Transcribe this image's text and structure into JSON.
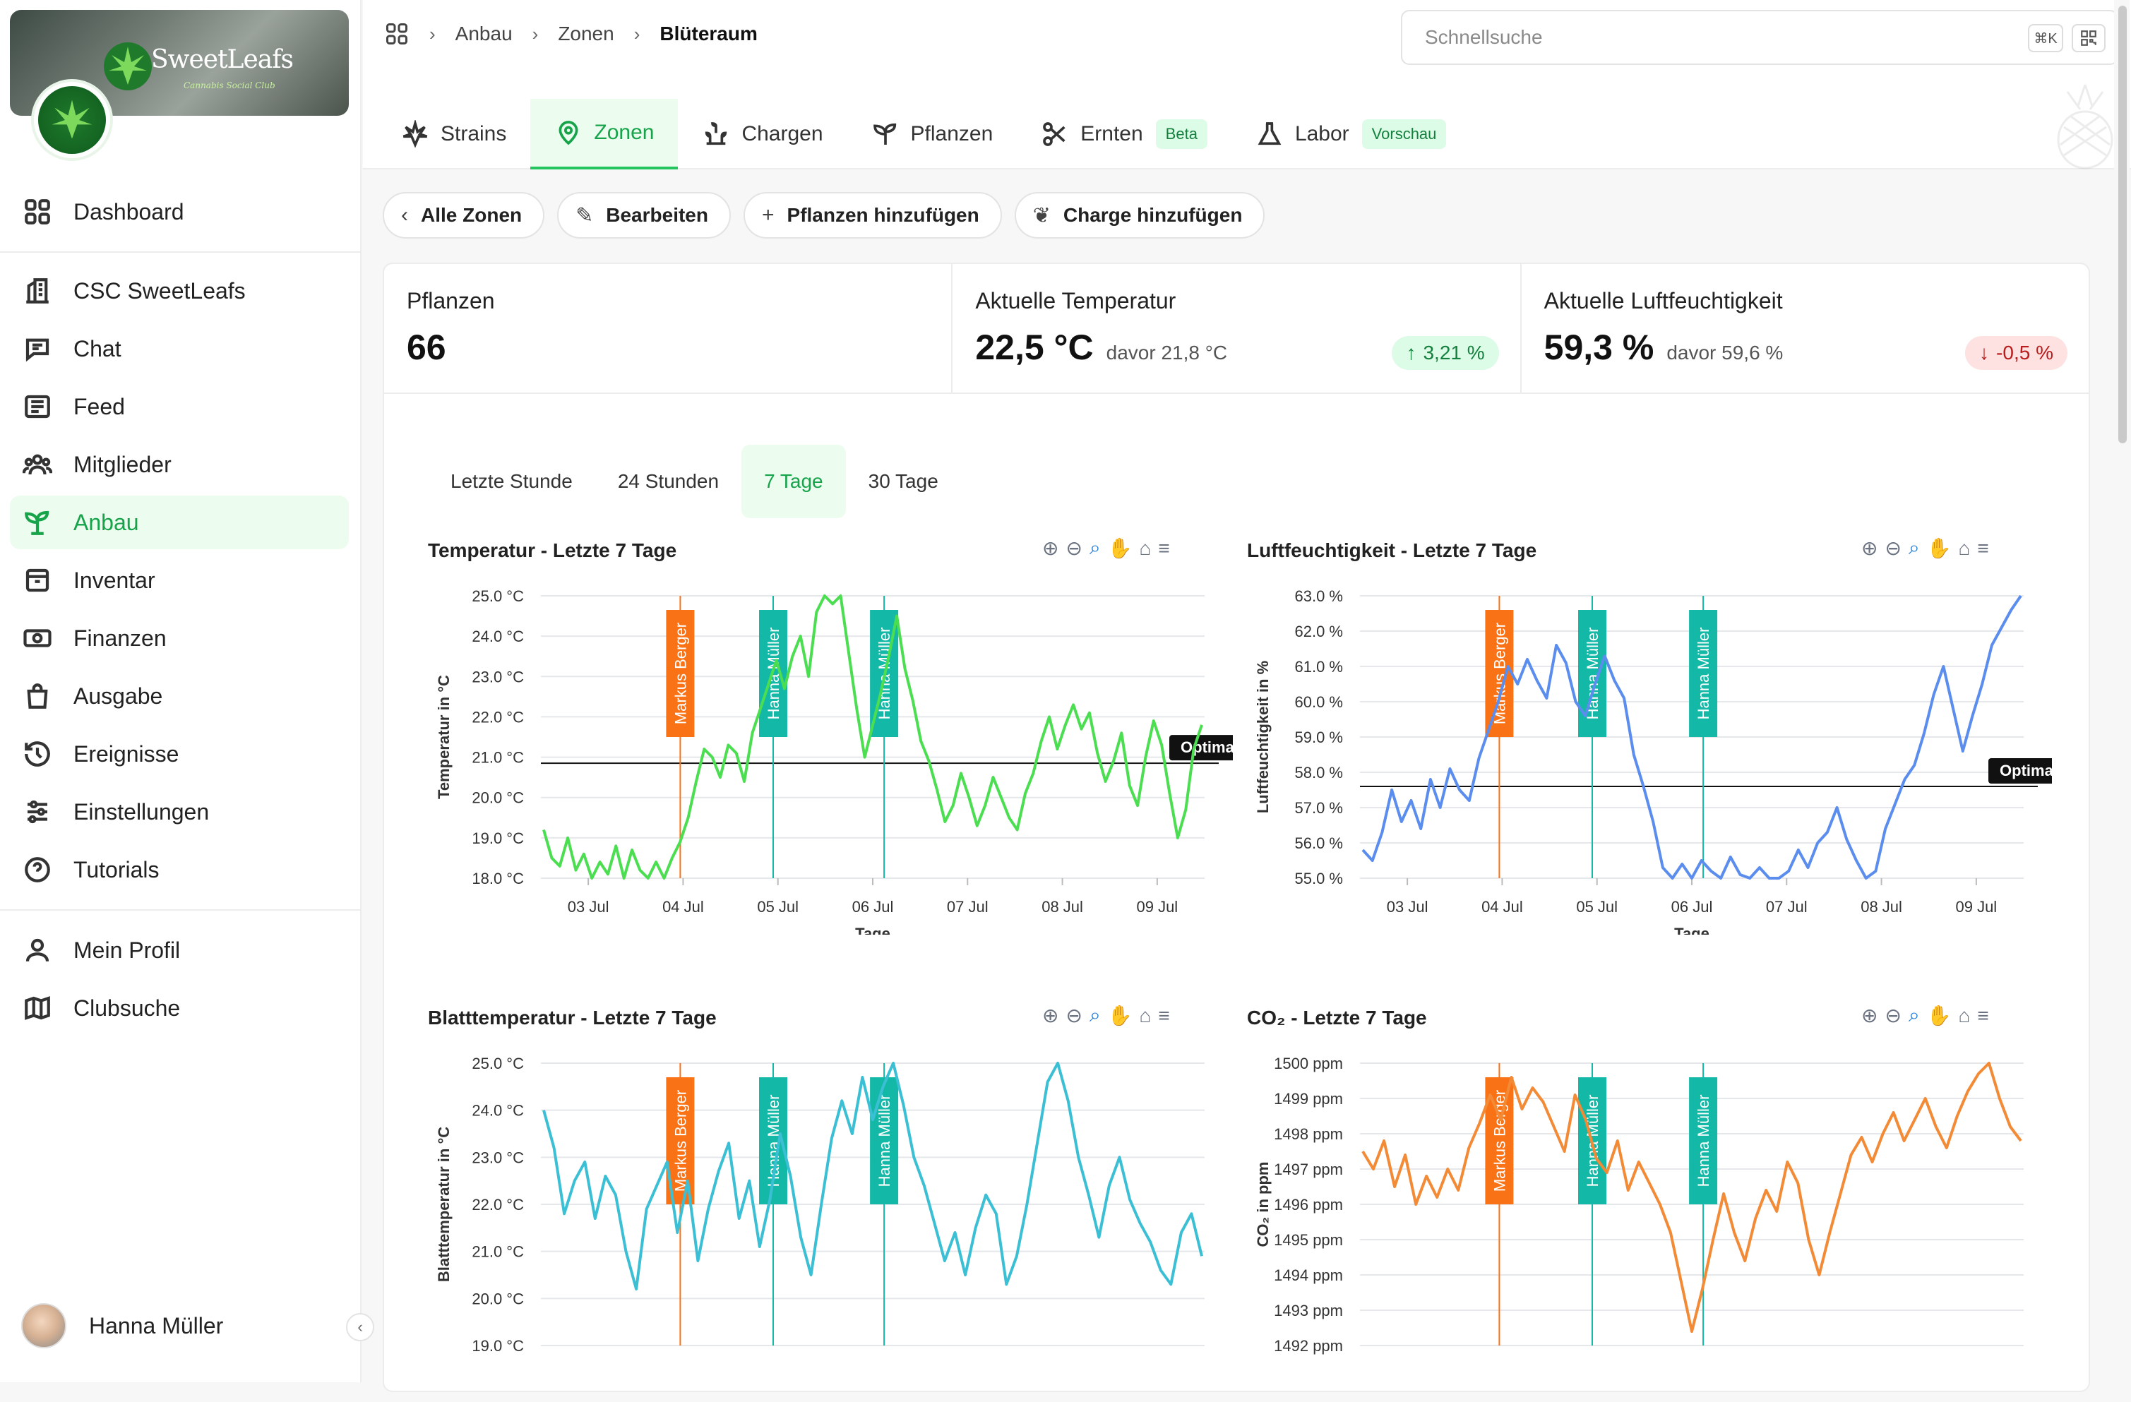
{
  "brand": {
    "name": "SweetLeafs",
    "tagline": "Cannabis Social Club"
  },
  "sidebar": {
    "items": [
      {
        "label": "Dashboard",
        "icon": "grid-icon"
      },
      {
        "label": "CSC SweetLeafs",
        "icon": "building-icon"
      },
      {
        "label": "Chat",
        "icon": "chat-icon"
      },
      {
        "label": "Feed",
        "icon": "newspaper-icon"
      },
      {
        "label": "Mitglieder",
        "icon": "users-icon"
      },
      {
        "label": "Anbau",
        "icon": "sprout-icon"
      },
      {
        "label": "Inventar",
        "icon": "box-icon"
      },
      {
        "label": "Finanzen",
        "icon": "banknote-icon"
      },
      {
        "label": "Ausgabe",
        "icon": "shopping-bag-icon"
      },
      {
        "label": "Ereignisse",
        "icon": "history-icon"
      },
      {
        "label": "Einstellungen",
        "icon": "sliders-icon"
      },
      {
        "label": "Tutorials",
        "icon": "help-icon"
      },
      {
        "label": "Mein Profil",
        "icon": "user-icon"
      },
      {
        "label": "Clubsuche",
        "icon": "map-icon"
      }
    ],
    "active": "Anbau",
    "user": "Hanna Müller"
  },
  "breadcrumb": [
    "Anbau",
    "Zonen",
    "Blüteraum"
  ],
  "search": {
    "placeholder": "Schnellsuche",
    "shortcut": "⌘K"
  },
  "tabs": [
    {
      "label": "Strains",
      "badge": ""
    },
    {
      "label": "Zonen",
      "badge": ""
    },
    {
      "label": "Chargen",
      "badge": ""
    },
    {
      "label": "Pflanzen",
      "badge": ""
    },
    {
      "label": "Ernten",
      "badge": "Beta"
    },
    {
      "label": "Labor",
      "badge": "Vorschau"
    }
  ],
  "actions": [
    "Alle Zonen",
    "Bearbeiten",
    "Pflanzen hinzufügen",
    "Charge hinzufügen"
  ],
  "stats": [
    {
      "label": "Pflanzen",
      "value": "66",
      "prev": "",
      "delta": "",
      "direction": ""
    },
    {
      "label": "Aktuelle Temperatur",
      "value": "22,5 °C",
      "prev": "davor 21,8 °C",
      "delta": "3,21 %",
      "direction": "up"
    },
    {
      "label": "Aktuelle Luftfeuchtigkeit",
      "value": "59,3 %",
      "prev": "davor 59,6 %",
      "delta": "-0,5 %",
      "direction": "down"
    }
  ],
  "ranges": [
    "Letzte Stunde",
    "24 Stunden",
    "7 Tage",
    "30 Tage"
  ],
  "active_range": "7 Tage",
  "colors": {
    "accent": "#16a34a",
    "temp": "#4ade50",
    "humidity": "#5b8def",
    "leaf": "#3bbfd4",
    "co2": "#f28a36",
    "markus": "#f97316",
    "hanna": "#14b8a6"
  },
  "chart_data": [
    {
      "type": "line",
      "title": "Temperatur - Letzte 7 Tage",
      "xlabel": "Tage",
      "ylabel": "Temperatur in °C",
      "x_ticks": [
        "03 Jul",
        "04 Jul",
        "05 Jul",
        "06 Jul",
        "07 Jul",
        "08 Jul",
        "09 Jul"
      ],
      "y_ticks": [
        "18.0 °C",
        "19.0 °C",
        "20.0 °C",
        "21.0 °C",
        "22.0 °C",
        "23.0 °C",
        "24.0 °C",
        "25.0 °C"
      ],
      "ylim": [
        18,
        25
      ],
      "optimal": 20.85,
      "optimal_label": "Optimal",
      "annotations": [
        {
          "label": "Markus Berger",
          "x": 4.47
        },
        {
          "label": "Hanna Müller",
          "x": 5.45
        },
        {
          "label": "Hanna Müller",
          "x": 6.62
        }
      ],
      "series": [
        {
          "values": [
            19.2,
            18.5,
            18.3,
            19.0,
            18.2,
            18.6,
            18.0,
            18.4,
            18.1,
            18.8,
            18.0,
            18.7,
            18.2,
            18.0,
            18.4,
            18.0,
            18.5,
            18.9,
            19.5,
            20.4,
            21.2,
            21.0,
            20.5,
            21.3,
            21.1,
            20.4,
            21.6,
            22.2,
            22.8,
            23.4,
            22.7,
            23.5,
            24.0,
            23.0,
            24.6,
            25.0,
            24.8,
            25.0,
            23.6,
            22.2,
            21.0,
            21.8,
            22.6,
            23.5,
            24.5,
            23.2,
            22.4,
            21.4,
            20.9,
            20.2,
            19.4,
            19.8,
            20.6,
            20.0,
            19.3,
            19.8,
            20.5,
            20.0,
            19.5,
            19.2,
            20.1,
            20.6,
            21.4,
            22.0,
            21.2,
            21.8,
            22.3,
            21.7,
            22.1,
            21.1,
            20.4,
            20.9,
            21.6,
            20.3,
            19.8,
            21.0,
            21.9,
            21.3,
            20.1,
            19.0,
            19.7,
            21.2,
            21.8
          ]
        }
      ]
    },
    {
      "type": "line",
      "title": "Luftfeuchtigkeit - Letzte 7 Tage",
      "xlabel": "Tage",
      "ylabel": "Luftfeuchtigkeit in %",
      "x_ticks": [
        "03 Jul",
        "04 Jul",
        "05 Jul",
        "06 Jul",
        "07 Jul",
        "08 Jul",
        "09 Jul"
      ],
      "y_ticks": [
        "55.0 %",
        "56.0 %",
        "57.0 %",
        "58.0 %",
        "59.0 %",
        "60.0 %",
        "61.0 %",
        "62.0 %",
        "63.0 %"
      ],
      "ylim": [
        55,
        63
      ],
      "optimal": 57.6,
      "optimal_label": "Optimal",
      "annotations": [
        {
          "label": "Markus Berger",
          "x": 4.47
        },
        {
          "label": "Hanna Müller",
          "x": 5.45
        },
        {
          "label": "Hanna Müller",
          "x": 6.62
        }
      ],
      "series": [
        {
          "values": [
            55.8,
            55.5,
            56.3,
            57.5,
            56.6,
            57.2,
            56.4,
            57.8,
            57.0,
            58.1,
            57.5,
            57.2,
            58.4,
            59.2,
            60.0,
            61.0,
            60.5,
            61.2,
            60.6,
            60.1,
            61.6,
            61.1,
            60.0,
            59.6,
            60.5,
            61.3,
            60.6,
            60.1,
            58.5,
            57.6,
            56.6,
            55.3,
            55.0,
            55.4,
            55.0,
            55.5,
            55.2,
            55.0,
            55.6,
            55.1,
            55.0,
            55.3,
            55.0,
            55.0,
            55.2,
            55.8,
            55.3,
            56.0,
            56.3,
            57.0,
            56.1,
            55.5,
            55.0,
            55.2,
            56.4,
            57.1,
            57.8,
            58.2,
            59.1,
            60.2,
            61.0,
            59.8,
            58.6,
            59.6,
            60.5,
            61.6,
            62.1,
            62.6,
            63.0
          ]
        }
      ]
    },
    {
      "type": "line",
      "title": "Blatttemperatur - Letzte 7 Tage",
      "xlabel": "",
      "ylabel": "Blatttemperatur in °C",
      "x_ticks": [],
      "y_ticks": [
        "19.0 °C",
        "20.0 °C",
        "21.0 °C",
        "22.0 °C",
        "23.0 °C",
        "24.0 °C",
        "25.0 °C"
      ],
      "ylim": [
        19,
        25
      ],
      "annotations": [
        {
          "label": "Markus Berger",
          "x": 4.47
        },
        {
          "label": "Hanna Müller",
          "x": 5.45
        },
        {
          "label": "Hanna Müller",
          "x": 6.62
        }
      ],
      "series": [
        {
          "values": [
            24.0,
            23.2,
            21.8,
            22.5,
            22.9,
            21.7,
            22.6,
            22.2,
            21.0,
            20.2,
            21.9,
            22.4,
            22.9,
            21.4,
            22.5,
            20.8,
            21.9,
            22.7,
            23.3,
            21.7,
            22.5,
            21.1,
            22.1,
            23.5,
            22.6,
            21.3,
            20.5,
            22.0,
            23.4,
            24.2,
            23.5,
            24.7,
            23.8,
            24.5,
            25.0,
            24.1,
            23.0,
            22.4,
            21.6,
            20.8,
            21.4,
            20.5,
            21.5,
            22.2,
            21.8,
            20.3,
            20.9,
            22.0,
            23.3,
            24.6,
            25.0,
            24.2,
            23.0,
            22.2,
            21.3,
            22.4,
            23.0,
            22.1,
            21.6,
            21.2,
            20.6,
            20.3,
            21.4,
            21.8,
            20.9
          ]
        }
      ]
    },
    {
      "type": "line",
      "title": "CO₂ - Letzte 7 Tage",
      "xlabel": "",
      "ylabel": "CO₂ in ppm",
      "x_ticks": [],
      "y_ticks": [
        "1492 ppm",
        "1493 ppm",
        "1494 ppm",
        "1495 ppm",
        "1496 ppm",
        "1497 ppm",
        "1498 ppm",
        "1499 ppm",
        "1500 ppm"
      ],
      "ylim": [
        1492,
        1500
      ],
      "annotations": [
        {
          "label": "Markus Berger",
          "x": 4.47
        },
        {
          "label": "Hanna Müller",
          "x": 5.45
        },
        {
          "label": "Hanna Müller",
          "x": 6.62
        }
      ],
      "series": [
        {
          "values": [
            1497.5,
            1497.0,
            1497.8,
            1496.5,
            1497.4,
            1496.0,
            1496.8,
            1496.2,
            1497.0,
            1496.4,
            1497.6,
            1498.3,
            1499.1,
            1498.4,
            1499.6,
            1498.7,
            1499.3,
            1498.9,
            1498.2,
            1497.5,
            1499.1,
            1498.4,
            1497.3,
            1496.9,
            1497.8,
            1496.4,
            1497.2,
            1496.6,
            1496.0,
            1495.2,
            1493.8,
            1492.4,
            1493.6,
            1495.0,
            1496.3,
            1495.2,
            1494.4,
            1495.6,
            1496.4,
            1495.8,
            1497.2,
            1496.6,
            1495.0,
            1494.0,
            1495.2,
            1496.3,
            1497.4,
            1497.9,
            1497.2,
            1498.0,
            1498.6,
            1497.8,
            1498.4,
            1499.0,
            1498.2,
            1497.6,
            1498.5,
            1499.2,
            1499.7,
            1500.0,
            1499.0,
            1498.2,
            1497.8
          ]
        }
      ]
    }
  ]
}
